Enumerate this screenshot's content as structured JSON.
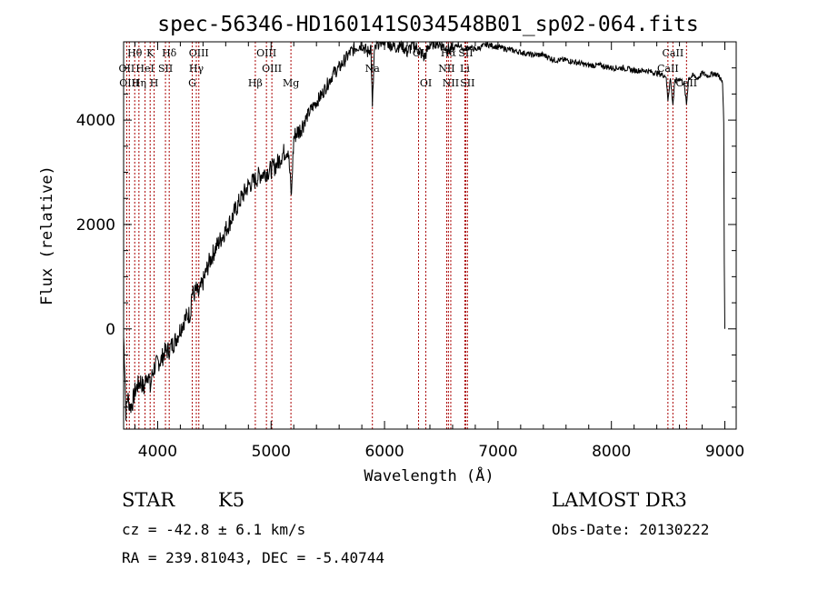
{
  "chart_data": {
    "type": "line",
    "title": "spec-56346-HD160141S034548B01_sp02-064.fits",
    "xlabel": "Wavelength (Å)",
    "ylabel": "Flux (relative)",
    "xlim": [
      3700,
      9100
    ],
    "ylim": [
      -1920,
      5500
    ],
    "xticks": [
      4000,
      5000,
      6000,
      7000,
      8000,
      9000
    ],
    "yticks": [
      0,
      2000,
      4000
    ],
    "xtick_labels": [
      "4000",
      "5000",
      "6000",
      "7000",
      "8000",
      "9000"
    ],
    "ytick_labels": [
      "0",
      "2000",
      "4000"
    ],
    "series": [
      {
        "name": "spectrum",
        "x": [
          3700,
          3710,
          3720,
          3735,
          3760,
          3780,
          3800,
          3820,
          3850,
          3880,
          3900,
          3920,
          3935,
          3950,
          3969,
          3985,
          4000,
          4030,
          4060,
          4101,
          4130,
          4160,
          4200,
          4230,
          4260,
          4290,
          4300,
          4320,
          4340,
          4360,
          4400,
          4450,
          4500,
          4550,
          4600,
          4650,
          4700,
          4750,
          4800,
          4861,
          4900,
          4950,
          5000,
          5050,
          5100,
          5150,
          5180,
          5185,
          5200,
          5220,
          5250,
          5300,
          5350,
          5400,
          5450,
          5500,
          5550,
          5600,
          5650,
          5700,
          5750,
          5800,
          5850,
          5880,
          5893,
          5910,
          5950,
          6000,
          6050,
          6100,
          6150,
          6200,
          6250,
          6300,
          6350,
          6400,
          6450,
          6500,
          6563,
          6600,
          6650,
          6700,
          6750,
          6800,
          6900,
          7000,
          7100,
          7200,
          7300,
          7400,
          7500,
          7600,
          7700,
          7800,
          7900,
          8000,
          8100,
          8200,
          8300,
          8400,
          8480,
          8498,
          8520,
          8542,
          8560,
          8600,
          8640,
          8662,
          8680,
          8720,
          8760,
          8800,
          8850,
          8900,
          8950,
          8980,
          8990,
          8995,
          9000
        ],
        "y": [
          -150,
          -700,
          -1600,
          -1300,
          -1500,
          -1400,
          -1200,
          -1100,
          -1000,
          -1150,
          -900,
          -850,
          -1150,
          -900,
          -750,
          -700,
          -650,
          -600,
          -450,
          -400,
          -300,
          -200,
          0,
          150,
          250,
          300,
          700,
          650,
          750,
          650,
          900,
          1250,
          1500,
          1700,
          1900,
          2100,
          2350,
          2550,
          2750,
          2850,
          2950,
          3000,
          3050,
          3150,
          3350,
          3450,
          2500,
          2900,
          3650,
          3750,
          3800,
          4000,
          4200,
          4350,
          4500,
          4700,
          4900,
          5000,
          5150,
          5300,
          5400,
          5450,
          5300,
          5400,
          4200,
          5300,
          5500,
          5550,
          5450,
          5400,
          5450,
          5300,
          5450,
          5350,
          5200,
          5450,
          5500,
          5450,
          5350,
          5350,
          5450,
          5350,
          5400,
          5350,
          5450,
          5400,
          5350,
          5300,
          5250,
          5250,
          5150,
          5150,
          5100,
          5050,
          5050,
          5000,
          5000,
          4950,
          4950,
          4900,
          4850,
          4400,
          4800,
          4300,
          4750,
          4800,
          4700,
          4300,
          4800,
          4850,
          4800,
          4900,
          4850,
          4900,
          4850,
          4700,
          4000,
          1200,
          0
        ]
      }
    ],
    "lines": [
      {
        "label": "Hθ",
        "x": 3798,
        "row": 0
      },
      {
        "label": "OII",
        "x": 3727,
        "row": 1
      },
      {
        "label": "OIII",
        "x": 3750,
        "row": 2
      },
      {
        "label": "Hη",
        "x": 3835,
        "row": 2
      },
      {
        "label": "K",
        "x": 3934,
        "row": 0
      },
      {
        "label": "HeI",
        "x": 3889,
        "row": 1
      },
      {
        "label": "H",
        "x": 3969,
        "row": 2
      },
      {
        "label": "SII",
        "x": 4069,
        "row": 1
      },
      {
        "label": "Hδ",
        "x": 4102,
        "row": 0
      },
      {
        "label": "OIII",
        "x": 4363,
        "row": 0
      },
      {
        "label": "Hγ",
        "x": 4341,
        "row": 1
      },
      {
        "label": "G",
        "x": 4305,
        "row": 2
      },
      {
        "label": "Hβ",
        "x": 4861,
        "row": 2
      },
      {
        "label": "OIII",
        "x": 4959,
        "row": 0
      },
      {
        "label": "OIII",
        "x": 5007,
        "row": 1
      },
      {
        "label": "Mg",
        "x": 5175,
        "row": 2
      },
      {
        "label": "Na",
        "x": 5893,
        "row": 1
      },
      {
        "label": "OI",
        "x": 6300,
        "row": 0
      },
      {
        "label": "OI",
        "x": 6364,
        "row": 2
      },
      {
        "label": "Hα",
        "x": 6563,
        "row": 0
      },
      {
        "label": "NII",
        "x": 6548,
        "row": 1
      },
      {
        "label": "NII",
        "x": 6584,
        "row": 2
      },
      {
        "label": "SII",
        "x": 6716,
        "row": 0
      },
      {
        "label": "Li",
        "x": 6708,
        "row": 1
      },
      {
        "label": "SII",
        "x": 6731,
        "row": 2
      },
      {
        "label": "CaII",
        "x": 8542,
        "row": 0
      },
      {
        "label": "CaII",
        "x": 8498,
        "row": 1
      },
      {
        "label": "CaII",
        "x": 8662,
        "row": 2
      }
    ],
    "line_color": "#aa0000"
  },
  "info": {
    "object_class": "STAR",
    "subclass": "K5",
    "survey": "LAMOST DR3",
    "cz": "cz = -42.8 ± 6.1 km/s",
    "obs_date": "Obs-Date: 20130222",
    "coords": "RA = 239.81043, DEC =  -5.40744"
  }
}
